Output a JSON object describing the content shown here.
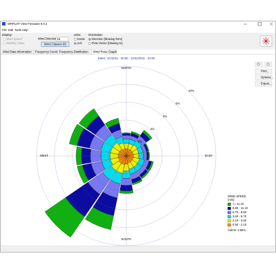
{
  "window": {
    "title": "WRPLOT View Freeware 8.0.2"
  },
  "menu": [
    "File",
    "Edit",
    "Tools",
    "Help"
  ],
  "toolbar": {
    "display_label": "Display:",
    "display_options": [
      "Wind Speed",
      "Stability Class"
    ],
    "wind_directions_label": "Wind Directions",
    "wind_directions_value": "16",
    "wind_classes_button": "Wind Classes (6)",
    "units_label": "Units",
    "units_options": [
      "Knots",
      "m/s"
    ],
    "orientation_label": "Orientation",
    "orientation_options": [
      "Direction (blowing from)",
      "Flow Vector (blowing to)"
    ]
  },
  "tabs": [
    "Wind Data Information",
    "Frequency Count",
    "Frequency Distribution",
    "Wind Rose",
    "Graph"
  ],
  "side_buttons": [
    "Print...",
    "Options...",
    "Export..."
  ],
  "chart_data": {
    "type": "wind_rose",
    "subtitle": "Dates: 1/1/2021 - 00:00 - 12/31/2021 - 23:00",
    "compass": {
      "north": "NORTH",
      "east": "EAST",
      "south": "SOUTH",
      "west": "WEST"
    },
    "rlim": [
      0,
      10
    ],
    "rticks": [
      {
        "value": 2,
        "label": "2%"
      },
      {
        "value": 4,
        "label": "4%"
      },
      {
        "value": 6,
        "label": "6%"
      },
      {
        "value": 8,
        "label": "8%"
      },
      {
        "value": 10,
        "label": "10%"
      }
    ],
    "grid": true,
    "legend_title": "WIND SPEED",
    "legend_units": "(m/s)",
    "calms": "Calms: 2.58%",
    "series": [
      {
        "name": ">= 11.10",
        "color": "#10b010",
        "values": [
          0.1,
          0.2,
          0.3,
          0.1,
          0.1,
          0.2,
          0.2,
          0.2,
          0.3,
          1.6,
          2.8,
          0.6,
          0.6,
          0.9,
          1.0,
          0.6
        ]
      },
      {
        "name": "8.80 - 11.10",
        "color": "#0c0ca0",
        "values": [
          0.2,
          0.3,
          0.5,
          0.2,
          0.2,
          0.3,
          0.3,
          0.4,
          0.6,
          2.0,
          3.0,
          1.0,
          1.0,
          1.4,
          1.2,
          0.7
        ]
      },
      {
        "name": "5.70 - 8.80",
        "color": "#7878f0",
        "values": [
          0.4,
          0.4,
          0.6,
          0.4,
          0.4,
          0.5,
          0.5,
          0.6,
          0.8,
          1.6,
          2.0,
          1.2,
          1.2,
          1.3,
          1.3,
          0.8
        ]
      },
      {
        "name": "3.60 - 5.70",
        "color": "#00dcf0",
        "values": [
          0.5,
          0.5,
          0.6,
          0.5,
          0.5,
          0.6,
          0.6,
          0.6,
          0.8,
          1.2,
          1.2,
          1.0,
          1.0,
          1.1,
          1.1,
          0.7
        ]
      },
      {
        "name": "2.10 - 3.60",
        "color": "#f0f000",
        "values": [
          0.6,
          0.6,
          0.7,
          0.6,
          0.6,
          0.7,
          0.7,
          0.7,
          0.8,
          1.0,
          1.0,
          0.9,
          0.9,
          0.9,
          0.9,
          0.7
        ]
      },
      {
        "name": "0.50 - 2.10",
        "color": "#ff8c00",
        "values": [
          0.8,
          0.8,
          0.8,
          0.8,
          0.8,
          0.8,
          0.8,
          0.8,
          0.9,
          1.0,
          1.0,
          0.9,
          0.9,
          0.9,
          0.9,
          0.8
        ]
      }
    ]
  }
}
